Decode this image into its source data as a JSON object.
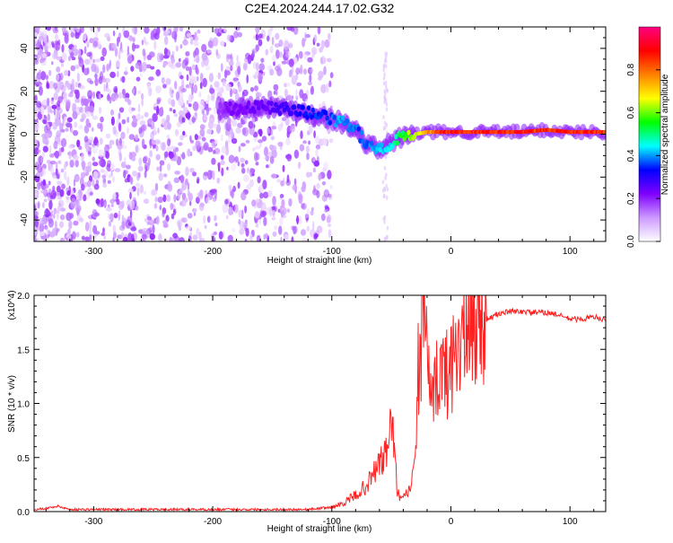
{
  "title": "C2E4.2024.244.17.02.G32",
  "chart_data": [
    {
      "type": "heatmap",
      "xlabel": "Height of straight line (km)",
      "ylabel": "Frequency (Hz)",
      "xlim": [
        -350,
        130
      ],
      "ylim": [
        -50,
        50
      ],
      "xticks": [
        -300,
        -200,
        -100,
        0,
        100
      ],
      "yticks": [
        -40,
        -20,
        0,
        20,
        40
      ],
      "colorbar": {
        "label": "Normalized spectral amplitude",
        "range": [
          0.0,
          1.0
        ],
        "ticks": [
          0.0,
          0.2,
          0.4,
          0.6,
          0.8
        ],
        "tick_labels": [
          "0.0",
          "0.2",
          "0.4",
          "0.6",
          "0.8"
        ],
        "colormap": [
          "#ffffff",
          "#cc99ff",
          "#7f00ff",
          "#0000ff",
          "#00ffff",
          "#00ff00",
          "#ffff00",
          "#ff8000",
          "#ff0000",
          "#ff0080"
        ]
      },
      "ridge": {
        "x": [
          -195,
          -180,
          -160,
          -140,
          -120,
          -100,
          -90,
          -80,
          -70,
          -60,
          -50,
          -40,
          -30,
          -20,
          -10,
          0,
          20,
          40,
          60,
          80,
          100,
          130
        ],
        "y": [
          12,
          12,
          13,
          12,
          10,
          7,
          5,
          2,
          -5,
          -7,
          -4,
          -1,
          0,
          1,
          1,
          1,
          1,
          1,
          1,
          2,
          1,
          1
        ],
        "amplitude": [
          0.2,
          0.25,
          0.25,
          0.3,
          0.35,
          0.4,
          0.45,
          0.4,
          0.4,
          0.45,
          0.5,
          0.6,
          0.7,
          0.8,
          0.9,
          0.95,
          0.95,
          0.95,
          0.95,
          0.9,
          0.95,
          0.95
        ]
      },
      "noise_region_x": [
        -350,
        -100
      ]
    },
    {
      "type": "line",
      "xlabel": "Height of straight line (km)",
      "ylabel": "SNR (10 * v/v)",
      "ylabel_scale": "(x10^4)",
      "xlim": [
        -350,
        130
      ],
      "ylim": [
        0.0,
        2.0
      ],
      "xticks": [
        -300,
        -200,
        -100,
        0,
        100
      ],
      "yticks": [
        0.0,
        0.5,
        1.0,
        1.5,
        2.0
      ],
      "ytick_labels": [
        "0.0",
        "0.5",
        "1.0",
        "1.5",
        "2.0"
      ],
      "series": [
        {
          "color": "#ff2020",
          "x": [
            -350,
            -340,
            -330,
            -320,
            -300,
            -250,
            -200,
            -150,
            -120,
            -100,
            -90,
            -80,
            -70,
            -60,
            -55,
            -52,
            -50,
            -48,
            -45,
            -42,
            -40,
            -35,
            -30,
            -28,
            -25,
            -22,
            -20,
            -18,
            -15,
            -12,
            -10,
            -8,
            -5,
            0,
            5,
            10,
            15,
            20,
            25,
            30,
            35,
            40,
            50,
            60,
            70,
            80,
            90,
            100,
            110,
            120,
            130
          ],
          "y": [
            0.02,
            0.03,
            0.05,
            0.02,
            0.02,
            0.02,
            0.02,
            0.02,
            0.02,
            0.04,
            0.08,
            0.15,
            0.25,
            0.45,
            0.5,
            0.7,
            0.93,
            0.6,
            0.2,
            0.1,
            0.12,
            0.2,
            0.4,
            1.3,
            1.45,
            2.0,
            1.7,
            1.0,
            0.95,
            1.2,
            1.4,
            1.3,
            1.25,
            1.35,
            1.55,
            1.6,
            1.65,
            1.7,
            1.75,
            1.78,
            1.8,
            1.83,
            1.85,
            1.85,
            1.84,
            1.84,
            1.82,
            1.78,
            1.78,
            1.8,
            1.77
          ]
        }
      ]
    }
  ]
}
